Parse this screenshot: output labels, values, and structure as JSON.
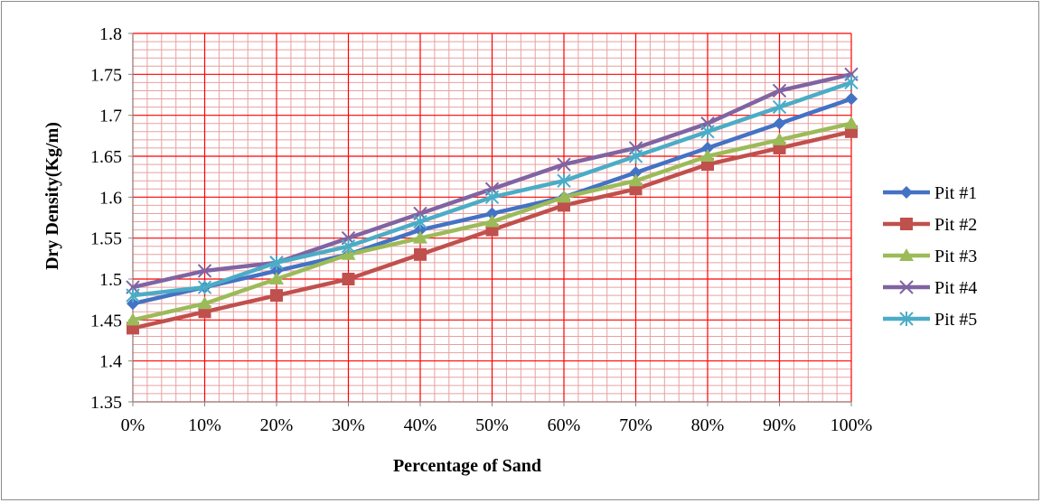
{
  "chart_data": {
    "type": "line",
    "title": "",
    "xlabel": "Percentage of Sand",
    "ylabel": "Dry Density(Kg/m)",
    "categories": [
      "0%",
      "10%",
      "20%",
      "30%",
      "40%",
      "50%",
      "60%",
      "70%",
      "80%",
      "90%",
      "100%"
    ],
    "ylim": [
      1.35,
      1.8
    ],
    "ymajor": 0.05,
    "y_ticks": [
      "1.35",
      "1.4",
      "1.45",
      "1.5",
      "1.55",
      "1.6",
      "1.65",
      "1.7",
      "1.75",
      "1.8"
    ],
    "grid": "major and minor",
    "grid_color": "#ff0000",
    "minor_grid_color": "#e8a0a0",
    "legend_position": "right",
    "series": [
      {
        "name": "Pit #1",
        "color": "#4472c4",
        "marker": "diamond",
        "values": [
          1.47,
          1.49,
          1.51,
          1.53,
          1.56,
          1.58,
          1.6,
          1.63,
          1.66,
          1.69,
          1.72
        ]
      },
      {
        "name": "Pit #2",
        "color": "#c0504d",
        "marker": "square",
        "values": [
          1.44,
          1.46,
          1.48,
          1.5,
          1.53,
          1.56,
          1.59,
          1.61,
          1.64,
          1.66,
          1.68
        ]
      },
      {
        "name": "Pit #3",
        "color": "#9bbb59",
        "marker": "triangle",
        "values": [
          1.45,
          1.47,
          1.5,
          1.53,
          1.55,
          1.57,
          1.6,
          1.62,
          1.65,
          1.67,
          1.69
        ]
      },
      {
        "name": "Pit #4",
        "color": "#8064a2",
        "marker": "x",
        "values": [
          1.49,
          1.51,
          1.52,
          1.55,
          1.58,
          1.61,
          1.64,
          1.66,
          1.69,
          1.73,
          1.75
        ]
      },
      {
        "name": "Pit #5",
        "color": "#4bacc6",
        "marker": "star",
        "values": [
          1.48,
          1.49,
          1.52,
          1.54,
          1.57,
          1.6,
          1.62,
          1.65,
          1.68,
          1.71,
          1.74
        ]
      }
    ]
  }
}
